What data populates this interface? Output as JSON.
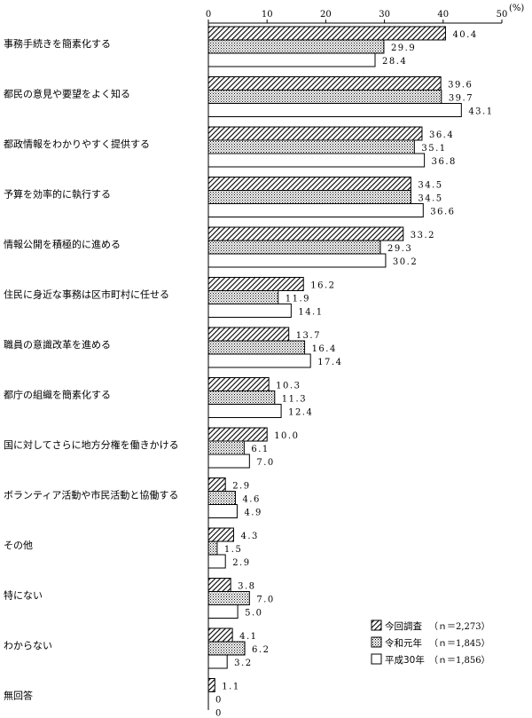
{
  "chart_data": {
    "type": "bar",
    "orientation": "horizontal",
    "unit_label": "(%)",
    "xlim": [
      0,
      50
    ],
    "ticks": [
      "0",
      "10",
      "20",
      "30",
      "40",
      "50"
    ],
    "categories": [
      "事務手続きを簡素化する",
      "都民の意見や要望をよく知る",
      "都政情報をわかりやすく提供する",
      "予算を効率的に執行する",
      "情報公開を積極的に進める",
      "住民に身近な事務は区市町村に任せる",
      "職員の意識改革を進める",
      "都庁の組織を簡素化する",
      "国に対してさらに地方分権を働きかける",
      "ボランティア活動や市民活動と協働する",
      "その他",
      "特にない",
      "わからない",
      "無回答"
    ],
    "series": [
      {
        "name": "今回調査",
        "n_label": "（ｎ＝2,273）",
        "pattern": "hatch",
        "values": [
          40.4,
          39.6,
          36.4,
          34.5,
          33.2,
          16.2,
          13.7,
          10.3,
          10.0,
          2.9,
          4.3,
          3.8,
          4.1,
          1.1
        ],
        "labels": [
          "40.4",
          "39.6",
          "36.4",
          "34.5",
          "33.2",
          "16.2",
          "13.7",
          "10.3",
          "10.0",
          "2.9",
          "4.3",
          "3.8",
          "4.1",
          "1.1"
        ]
      },
      {
        "name": "令和元年",
        "n_label": "（ｎ＝1,845）",
        "pattern": "dots",
        "values": [
          29.9,
          39.7,
          35.1,
          34.5,
          29.3,
          11.9,
          16.4,
          11.3,
          6.1,
          4.6,
          1.5,
          7.0,
          6.2,
          0
        ],
        "labels": [
          "29.9",
          "39.7",
          "35.1",
          "34.5",
          "29.3",
          "11.9",
          "16.4",
          "11.3",
          "6.1",
          "4.6",
          "1.5",
          "7.0",
          "6.2",
          "0"
        ]
      },
      {
        "name": "平成30年",
        "n_label": "（ｎ＝1,856）",
        "pattern": "blank",
        "values": [
          28.4,
          43.1,
          36.8,
          36.6,
          30.2,
          14.1,
          17.4,
          12.4,
          7.0,
          4.9,
          2.9,
          5.0,
          3.2,
          0
        ],
        "labels": [
          "28.4",
          "43.1",
          "36.8",
          "36.6",
          "30.2",
          "14.1",
          "17.4",
          "12.4",
          "7.0",
          "4.9",
          "2.9",
          "5.0",
          "3.2",
          "0"
        ]
      }
    ],
    "legend_position": "bottom-right",
    "grid": false
  }
}
